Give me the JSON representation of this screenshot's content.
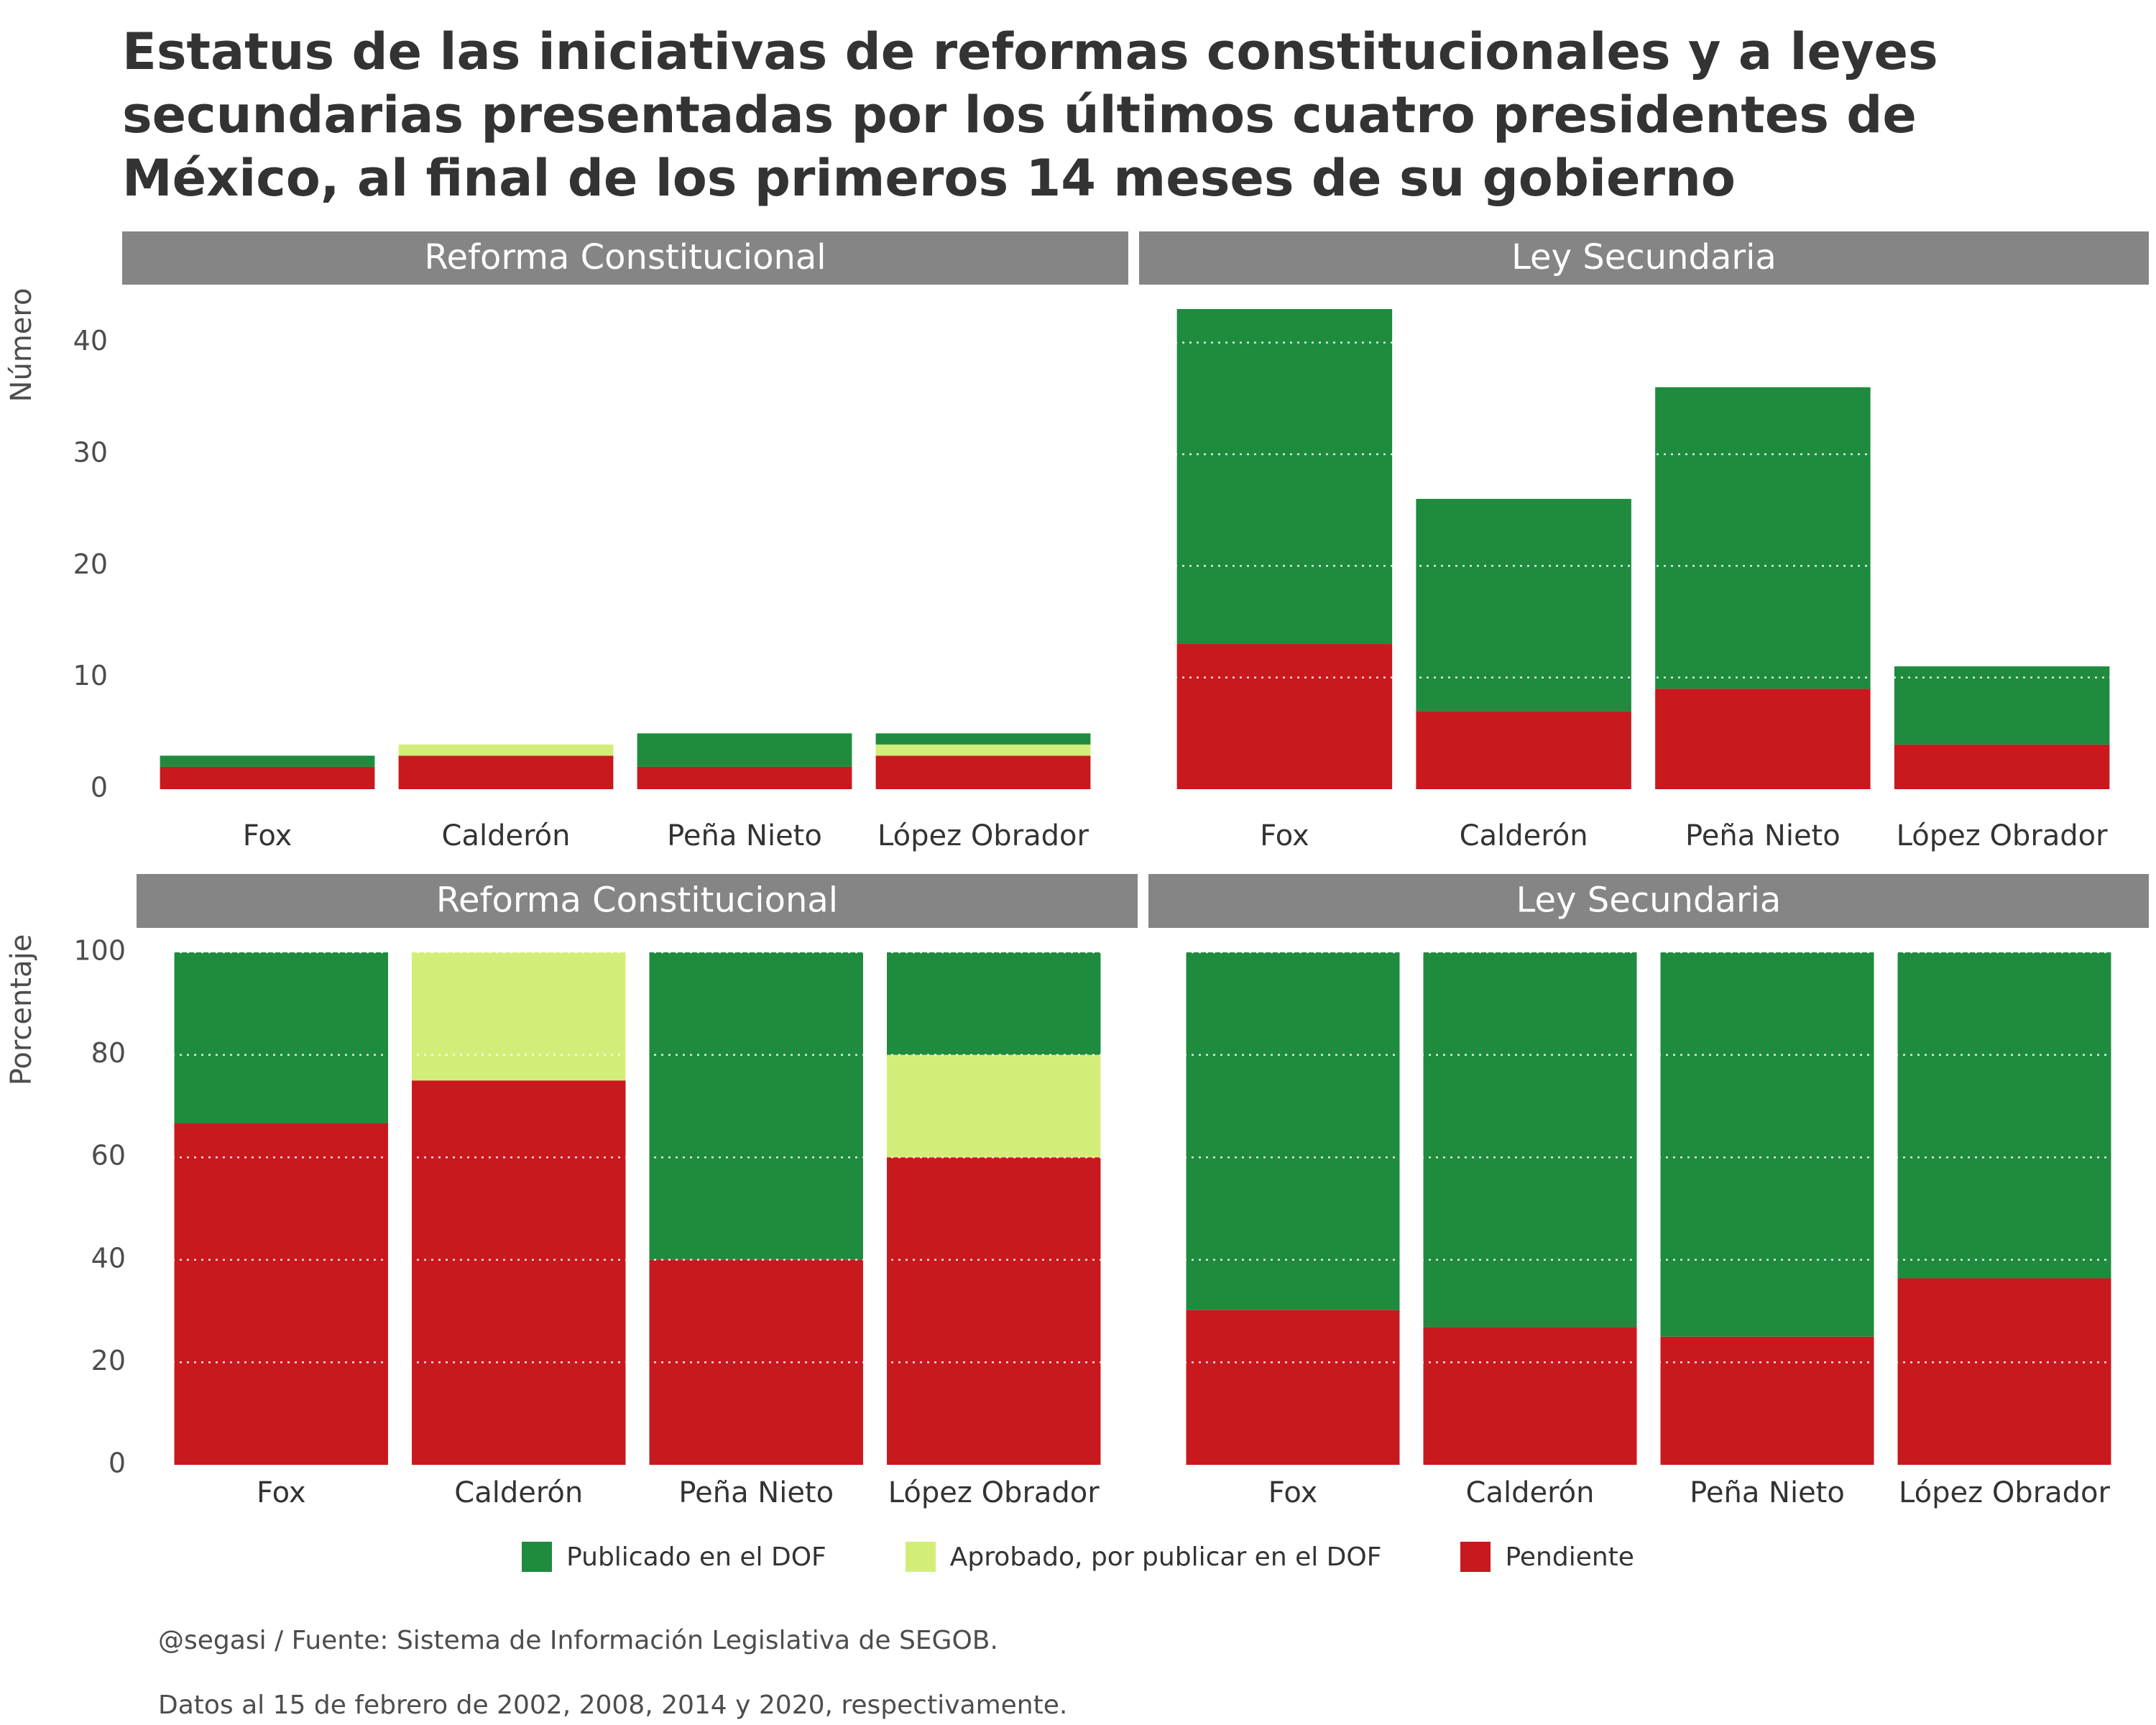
{
  "title": "Estatus de las iniciativas de reformas constitucionales y a leyes secundarias presentadas por los últimos cuatro presidentes de México, al final de los primeros 14 meses de su gobierno",
  "caption_source": "@segasi / Fuente: Sistema de Información Legislativa de SEGOB.",
  "caption_dates": "Datos al 15 de febrero de 2002, 2008, 2014 y 2020, respectivamente.",
  "legend": [
    {
      "label": "Publicado en el DOF",
      "color": "#1e8b3e"
    },
    {
      "label": "Aprobado, por publicar en el DOF",
      "color": "#d3ee78"
    },
    {
      "label": "Pendiente",
      "color": "#c8191e"
    }
  ],
  "chart_data": [
    {
      "type": "bar",
      "stacked": true,
      "ylabel": "Número",
      "ylim": [
        0,
        43
      ],
      "yticks": [
        0,
        10,
        20,
        30,
        40
      ],
      "grid": "horizontal dotted",
      "panels": [
        {
          "facet": "Reforma Constitucional",
          "categories": [
            "Fox",
            "Calderón",
            "Peña Nieto",
            "López Obrador"
          ],
          "series": [
            {
              "name": "Pendiente",
              "values": [
                2,
                3,
                2,
                3
              ]
            },
            {
              "name": "Aprobado, por publicar en el DOF",
              "values": [
                0,
                1,
                0,
                1
              ]
            },
            {
              "name": "Publicado en el DOF",
              "values": [
                1,
                0,
                3,
                1
              ]
            }
          ]
        },
        {
          "facet": "Ley Secundaria",
          "categories": [
            "Fox",
            "Calderón",
            "Peña Nieto",
            "López Obrador"
          ],
          "series": [
            {
              "name": "Pendiente",
              "values": [
                13,
                7,
                9,
                4
              ]
            },
            {
              "name": "Aprobado, por publicar en el DOF",
              "values": [
                0,
                0,
                0,
                0
              ]
            },
            {
              "name": "Publicado en el DOF",
              "values": [
                30,
                19,
                27,
                7
              ]
            }
          ]
        }
      ]
    },
    {
      "type": "bar",
      "stacked": true,
      "ylabel": "Porcentaje",
      "ylim": [
        0,
        100
      ],
      "yticks": [
        0,
        20,
        40,
        60,
        80,
        100
      ],
      "grid": "horizontal dotted",
      "panels": [
        {
          "facet": "Reforma Constitucional",
          "categories": [
            "Fox",
            "Calderón",
            "Peña Nieto",
            "López Obrador"
          ],
          "series": [
            {
              "name": "Pendiente",
              "values": [
                66.7,
                75,
                40,
                60
              ]
            },
            {
              "name": "Aprobado, por publicar en el DOF",
              "values": [
                0,
                25,
                0,
                20
              ]
            },
            {
              "name": "Publicado en el DOF",
              "values": [
                33.3,
                0,
                60,
                20
              ]
            }
          ]
        },
        {
          "facet": "Ley Secundaria",
          "categories": [
            "Fox",
            "Calderón",
            "Peña Nieto",
            "López Obrador"
          ],
          "series": [
            {
              "name": "Pendiente",
              "values": [
                30.2,
                26.9,
                25,
                36.4
              ]
            },
            {
              "name": "Aprobado, por publicar en el DOF",
              "values": [
                0,
                0,
                0,
                0
              ]
            },
            {
              "name": "Publicado en el DOF",
              "values": [
                69.8,
                73.1,
                75,
                63.6
              ]
            }
          ]
        }
      ]
    }
  ]
}
